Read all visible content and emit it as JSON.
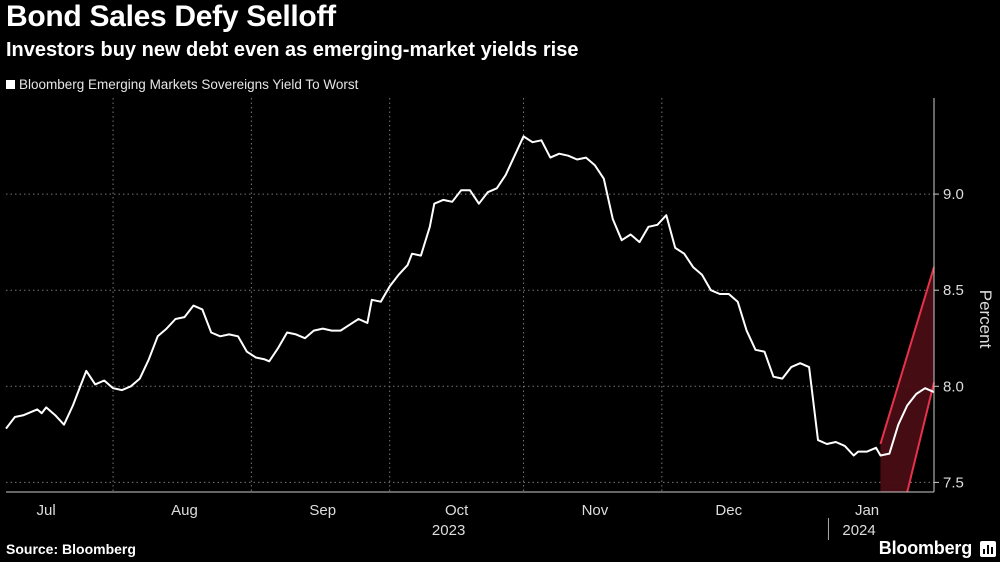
{
  "title": "Bond Sales Defy Selloff",
  "subtitle": "Investors buy new debt even as emerging-market yields rise",
  "source": "Source: Bloomberg",
  "brand": "Bloomberg",
  "chart_data": {
    "type": "line",
    "ylabel": "Percent",
    "ylim": [
      7.45,
      9.5
    ],
    "yticks": [
      7.5,
      8.0,
      8.5,
      9.0
    ],
    "ytick_labels": [
      "7.5",
      "8.0",
      "8.5",
      "9.0"
    ],
    "x_range": [
      "2023-07-01",
      "2024-01-25"
    ],
    "month_ticks": [
      {
        "date": "2023-07-10",
        "label": "Jul"
      },
      {
        "date": "2023-08-10",
        "label": "Aug"
      },
      {
        "date": "2023-09-10",
        "label": "Sep"
      },
      {
        "date": "2023-10-10",
        "label": "Oct"
      },
      {
        "date": "2023-11-10",
        "label": "Nov"
      },
      {
        "date": "2023-12-10",
        "label": "Dec"
      },
      {
        "date": "2024-01-10",
        "label": "Jan"
      }
    ],
    "gridlines": [
      "2023-07-25",
      "2023-08-25",
      "2023-09-25",
      "2023-10-25",
      "2023-11-25"
    ],
    "year_labels": [
      {
        "date": "2023-10-10",
        "label": "2023"
      },
      {
        "date": "2024-01-10",
        "label": "2024"
      }
    ],
    "year_divider": "2023-12-31",
    "grid": true,
    "legend_position": "top-left",
    "series": [
      {
        "name": "Bloomberg Emerging Markets Sovereigns Yield To Worst",
        "color": "#ffffff",
        "points": [
          [
            "2023-07-01",
            7.78
          ],
          [
            "2023-07-03",
            7.84
          ],
          [
            "2023-07-05",
            7.85
          ],
          [
            "2023-07-06",
            7.86
          ],
          [
            "2023-07-08",
            7.88
          ],
          [
            "2023-07-09",
            7.86
          ],
          [
            "2023-07-10",
            7.89
          ],
          [
            "2023-07-12",
            7.85
          ],
          [
            "2023-07-14",
            7.8
          ],
          [
            "2023-07-16",
            7.9
          ],
          [
            "2023-07-18",
            8.02
          ],
          [
            "2023-07-19",
            8.08
          ],
          [
            "2023-07-21",
            8.01
          ],
          [
            "2023-07-23",
            8.03
          ],
          [
            "2023-07-25",
            7.99
          ],
          [
            "2023-07-27",
            7.98
          ],
          [
            "2023-07-29",
            8.0
          ],
          [
            "2023-07-31",
            8.04
          ],
          [
            "2023-08-02",
            8.14
          ],
          [
            "2023-08-04",
            8.26
          ],
          [
            "2023-08-06",
            8.3
          ],
          [
            "2023-08-08",
            8.35
          ],
          [
            "2023-08-10",
            8.36
          ],
          [
            "2023-08-12",
            8.42
          ],
          [
            "2023-08-14",
            8.4
          ],
          [
            "2023-08-16",
            8.28
          ],
          [
            "2023-08-18",
            8.26
          ],
          [
            "2023-08-20",
            8.27
          ],
          [
            "2023-08-22",
            8.26
          ],
          [
            "2023-08-24",
            8.18
          ],
          [
            "2023-08-26",
            8.15
          ],
          [
            "2023-08-28",
            8.14
          ],
          [
            "2023-08-29",
            8.13
          ],
          [
            "2023-08-31",
            8.2
          ],
          [
            "2023-09-02",
            8.28
          ],
          [
            "2023-09-04",
            8.27
          ],
          [
            "2023-09-06",
            8.25
          ],
          [
            "2023-09-08",
            8.29
          ],
          [
            "2023-09-10",
            8.3
          ],
          [
            "2023-09-12",
            8.29
          ],
          [
            "2023-09-14",
            8.29
          ],
          [
            "2023-09-16",
            8.32
          ],
          [
            "2023-09-18",
            8.35
          ],
          [
            "2023-09-20",
            8.33
          ],
          [
            "2023-09-21",
            8.45
          ],
          [
            "2023-09-23",
            8.44
          ],
          [
            "2023-09-25",
            8.52
          ],
          [
            "2023-09-27",
            8.58
          ],
          [
            "2023-09-29",
            8.63
          ],
          [
            "2023-09-30",
            8.69
          ],
          [
            "2023-10-02",
            8.68
          ],
          [
            "2023-10-04",
            8.83
          ],
          [
            "2023-10-05",
            8.95
          ],
          [
            "2023-10-07",
            8.97
          ],
          [
            "2023-10-09",
            8.96
          ],
          [
            "2023-10-11",
            9.02
          ],
          [
            "2023-10-13",
            9.02
          ],
          [
            "2023-10-15",
            8.95
          ],
          [
            "2023-10-17",
            9.01
          ],
          [
            "2023-10-19",
            9.03
          ],
          [
            "2023-10-21",
            9.1
          ],
          [
            "2023-10-23",
            9.2
          ],
          [
            "2023-10-25",
            9.3
          ],
          [
            "2023-10-27",
            9.27
          ],
          [
            "2023-10-29",
            9.28
          ],
          [
            "2023-10-31",
            9.19
          ],
          [
            "2023-11-02",
            9.21
          ],
          [
            "2023-11-04",
            9.2
          ],
          [
            "2023-11-06",
            9.18
          ],
          [
            "2023-11-08",
            9.19
          ],
          [
            "2023-11-10",
            9.15
          ],
          [
            "2023-11-12",
            9.08
          ],
          [
            "2023-11-14",
            8.87
          ],
          [
            "2023-11-16",
            8.76
          ],
          [
            "2023-11-18",
            8.79
          ],
          [
            "2023-11-20",
            8.75
          ],
          [
            "2023-11-22",
            8.83
          ],
          [
            "2023-11-24",
            8.84
          ],
          [
            "2023-11-26",
            8.89
          ],
          [
            "2023-11-28",
            8.72
          ],
          [
            "2023-11-30",
            8.69
          ],
          [
            "2023-12-02",
            8.62
          ],
          [
            "2023-12-04",
            8.58
          ],
          [
            "2023-12-06",
            8.5
          ],
          [
            "2023-12-08",
            8.48
          ],
          [
            "2023-12-10",
            8.48
          ],
          [
            "2023-12-12",
            8.44
          ],
          [
            "2023-12-14",
            8.29
          ],
          [
            "2023-12-16",
            8.19
          ],
          [
            "2023-12-18",
            8.18
          ],
          [
            "2023-12-20",
            8.05
          ],
          [
            "2023-12-22",
            8.04
          ],
          [
            "2023-12-24",
            8.1
          ],
          [
            "2023-12-26",
            8.12
          ],
          [
            "2023-12-28",
            8.1
          ],
          [
            "2023-12-30",
            7.72
          ],
          [
            "2024-01-01",
            7.7
          ],
          [
            "2024-01-03",
            7.71
          ],
          [
            "2024-01-05",
            7.69
          ],
          [
            "2024-01-07",
            7.64
          ],
          [
            "2024-01-08",
            7.66
          ],
          [
            "2024-01-10",
            7.66
          ],
          [
            "2024-01-12",
            7.68
          ],
          [
            "2024-01-13",
            7.64
          ],
          [
            "2024-01-15",
            7.65
          ],
          [
            "2024-01-17",
            7.8
          ],
          [
            "2024-01-19",
            7.9
          ],
          [
            "2024-01-21",
            7.96
          ],
          [
            "2024-01-23",
            7.99
          ],
          [
            "2024-01-25",
            7.97
          ]
        ]
      }
    ],
    "trend_channel": {
      "color": "#e8324a",
      "fill": "#4a0d15",
      "upper": [
        [
          "2024-01-13",
          7.7
        ],
        [
          "2024-01-25",
          8.62
        ]
      ],
      "lower": [
        [
          "2024-01-19",
          7.45
        ],
        [
          "2024-01-25",
          8.02
        ]
      ]
    }
  }
}
